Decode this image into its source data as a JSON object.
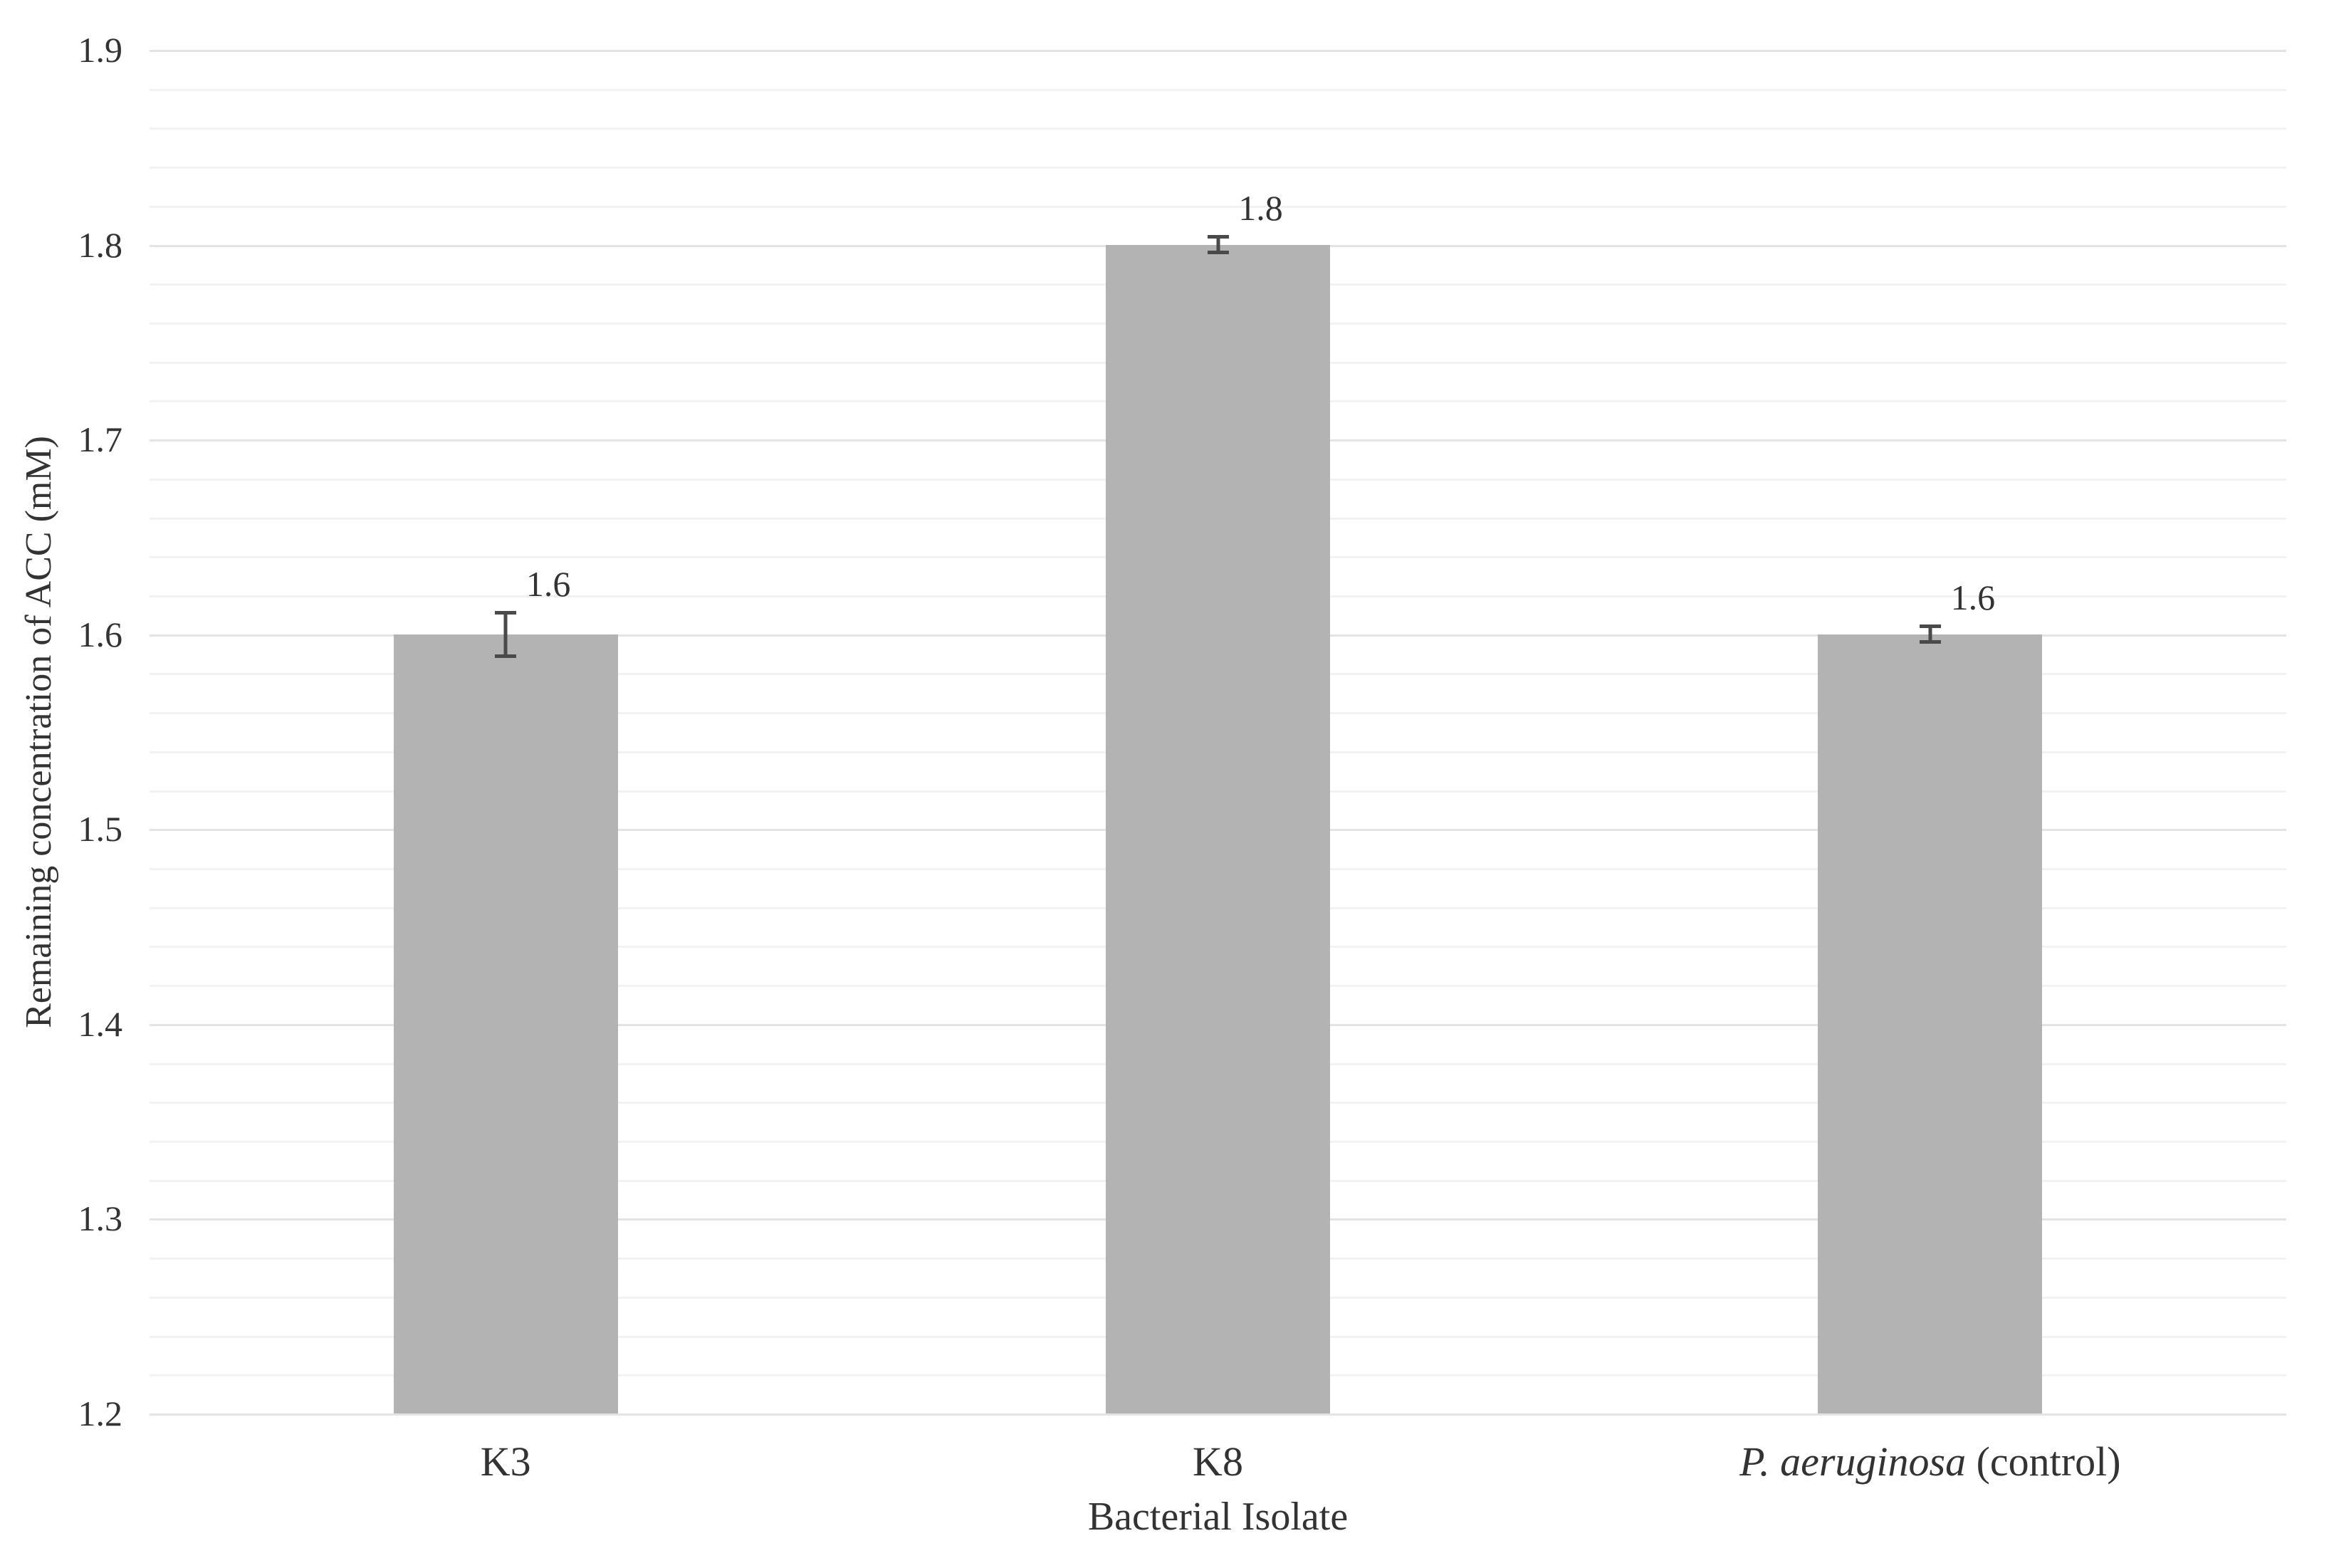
{
  "chart_data": {
    "type": "bar",
    "title": "",
    "categories": [
      "K3",
      "K8",
      "P. aeruginosa (control)"
    ],
    "categories_rich": [
      {
        "text": "K3"
      },
      {
        "text": "K8"
      },
      {
        "italic": "P. aeruginosa",
        "text": " (control)"
      }
    ],
    "values": [
      1.6,
      1.8,
      1.6
    ],
    "error_bars": [
      0.012,
      0.005,
      0.005
    ],
    "data_labels": [
      "1.6",
      "1.8",
      "1.6"
    ],
    "xlabel": "Bacterial Isolate",
    "ylabel": "Remaining concentration of ACC (mM)",
    "ylim": [
      1.2,
      1.9
    ],
    "y_major_step": 0.1,
    "y_minor_step": 0.02,
    "y_tick_labels": [
      "1.2",
      "1.3",
      "1.4",
      "1.5",
      "1.6",
      "1.7",
      "1.8",
      "1.9"
    ],
    "grid": "horizontal-major-and-minor",
    "legend": "none"
  },
  "colors": {
    "background": "#ffffff",
    "bar_fill": "#b3b3b3",
    "grid_major": "#e4e4e4",
    "grid_minor": "#f2f2f2",
    "error_bar": "#4a4a4a",
    "text": "#333333"
  }
}
